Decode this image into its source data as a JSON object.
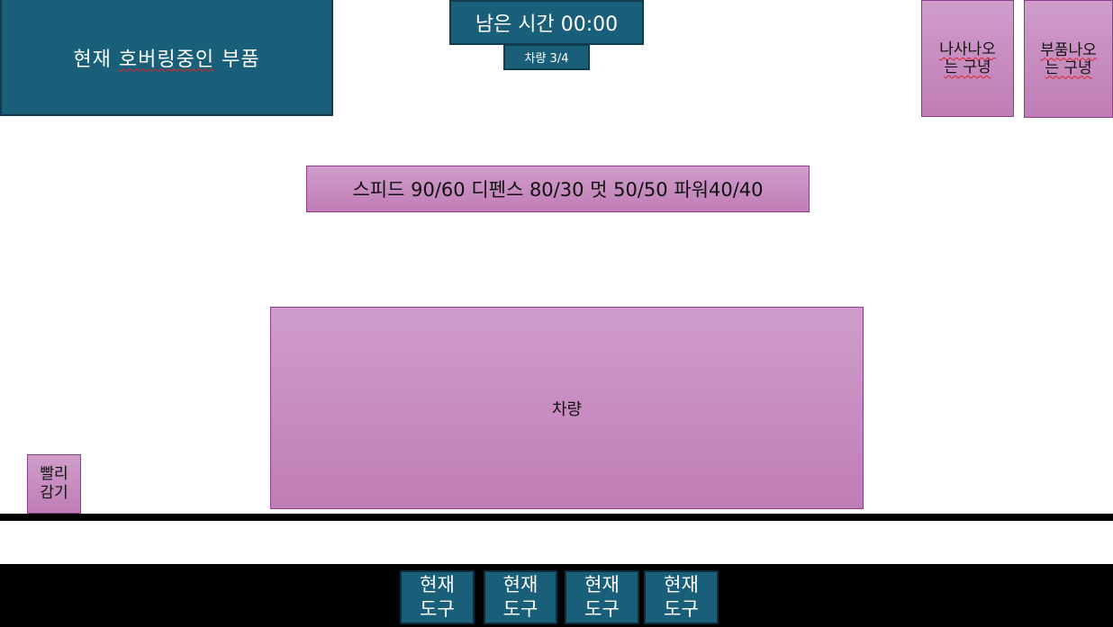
{
  "hover_panel": {
    "prefix": "현재",
    "highlighted": "호버링중인",
    "suffix": "부품"
  },
  "timer": {
    "label": "남은 시간 00:00"
  },
  "vehicle_count": {
    "label": "차량 3/4"
  },
  "spawn_holes": [
    {
      "line1": "나사나오",
      "line2": "는 구녕"
    },
    {
      "line1": "부품나오",
      "line2": "는 구녕"
    }
  ],
  "stats": {
    "text": "스피드 90/60 디펜스 80/30 멋 50/50 파워40/40"
  },
  "vehicle": {
    "label": "차량"
  },
  "fast_wind": {
    "line1": "빨리",
    "line2": "감기"
  },
  "tools": [
    {
      "line1": "현재",
      "line2": "도구"
    },
    {
      "line1": "현재",
      "line2": "도구"
    },
    {
      "line1": "현재",
      "line2": "도구"
    },
    {
      "line1": "현재",
      "line2": "도구"
    }
  ],
  "colors": {
    "teal": "#1a5f7a",
    "pink_top": "#cf9dcb",
    "pink_bottom": "#c07db6",
    "border_purple": "#8b3f8a"
  }
}
